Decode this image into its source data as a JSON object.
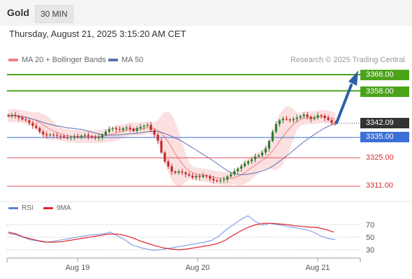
{
  "header": {
    "symbol": "Gold",
    "timeframe": "30 MIN"
  },
  "datetime": "Thursday, August 21, 2025 3:15:20 AM CET",
  "legend": {
    "ma20": "MA 20 + Bollinger Bands",
    "ma50": "MA 50",
    "credit": "Research © 2025 Trading Central"
  },
  "price_labels": {
    "r2": "3366.00",
    "r1": "3358.00",
    "last": "3342.09",
    "pivot": "3335.00",
    "s1": "3325.00",
    "s2": "3311.00"
  },
  "rsi": {
    "rsi_label": "RSI",
    "ma_label": "9MA",
    "levels": [
      "70",
      "50",
      "30"
    ]
  },
  "x_labels": [
    "Aug 19",
    "Aug 20",
    "Aug 21"
  ],
  "colors": {
    "resistance": "#4ca31a",
    "pivot": "#3b6ed6",
    "support": "#e0515a",
    "up": "#2f7d32",
    "down": "#c62828",
    "band": "#f9d6d6",
    "ma20": "#f08080",
    "ma50": "#5b6fae",
    "arrow": "#2e5fa8"
  },
  "chart_data": {
    "type": "candlestick",
    "horizontal_levels": [
      {
        "value": 3366.0,
        "role": "resistance"
      },
      {
        "value": 3358.0,
        "role": "resistance"
      },
      {
        "value": 3335.0,
        "role": "pivot"
      },
      {
        "value": 3325.0,
        "role": "support"
      },
      {
        "value": 3311.0,
        "role": "support"
      }
    ],
    "last_price": 3342.09,
    "price_range": [
      3306,
      3370
    ],
    "close_path": [
      3345.5,
      3346.2,
      3345.6,
      3344.8,
      3343.9,
      3343.5,
      3342.2,
      3340.8,
      3339.7,
      3337.9,
      3336.6,
      3336.1,
      3336.4,
      3336.2,
      3335.8,
      3335.6,
      3335.1,
      3334.9,
      3335.3,
      3335.6,
      3335.2,
      3335.9,
      3336.2,
      3335.6,
      3335.2,
      3334.7,
      3335.2,
      3336.3,
      3337.9,
      3339.2,
      3339.6,
      3339.1,
      3338.7,
      3339.5,
      3339.9,
      3339.3,
      3338.2,
      3339.6,
      3340.3,
      3340.8,
      3341.2,
      3338.7,
      3336.4,
      3333.4,
      3327.6,
      3323.2,
      3320.8,
      3318.2,
      3317.6,
      3318.3,
      3317.8,
      3316.9,
      3316.2,
      3315.3,
      3316.1,
      3315.6,
      3316.3,
      3315.8,
      3314.7,
      3313.9,
      3313.5,
      3313.9,
      3314.3,
      3315.8,
      3316.9,
      3318.4,
      3319.7,
      3320.9,
      3322.2,
      3323.3,
      3324.3,
      3325.6,
      3326.2,
      3327.6,
      3329.6,
      3333.3,
      3337.9,
      3341.6,
      3343.5,
      3344.3,
      3343.9,
      3343.5,
      3344.1,
      3344.8,
      3345.5,
      3346.3,
      3345.2,
      3344.1,
      3344.8,
      3346.0,
      3345.7,
      3344.6,
      3343.6,
      3342.2,
      3342.1
    ],
    "rsi_path": [
      56,
      54,
      50,
      46,
      44,
      42,
      43,
      45,
      47,
      49,
      51,
      53,
      54,
      55,
      58,
      52,
      46,
      38,
      34,
      31,
      29,
      30,
      32,
      34,
      36,
      38,
      40,
      42,
      45,
      52,
      62,
      70,
      78,
      84,
      75,
      69,
      72,
      70,
      68,
      66,
      64,
      62,
      58,
      52,
      48,
      46
    ],
    "rsi_ma_path": [
      58,
      55,
      50,
      47,
      44,
      42,
      42,
      43,
      45,
      47,
      49,
      51,
      53,
      55,
      55,
      53,
      49,
      44,
      40,
      36,
      33,
      31,
      30,
      31,
      33,
      35,
      37,
      40,
      45,
      53,
      60,
      66,
      70,
      72,
      72,
      71,
      70,
      68,
      67,
      66,
      65,
      62,
      58
    ],
    "rsi_levels": [
      70,
      50,
      30
    ],
    "x_tick_labels": [
      "Aug 19",
      "Aug 20",
      "Aug 21"
    ]
  }
}
